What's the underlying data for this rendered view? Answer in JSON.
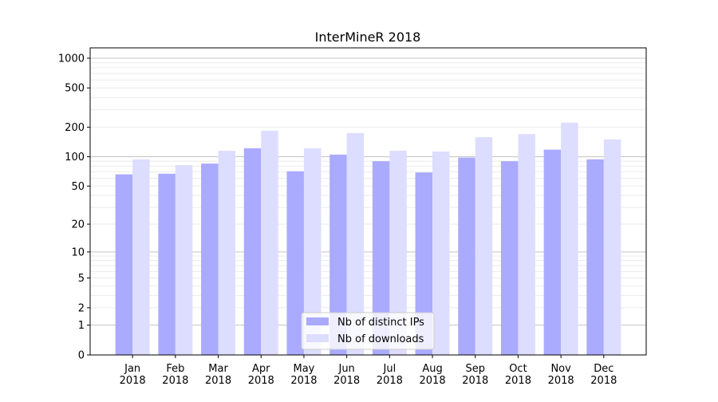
{
  "chart_data": {
    "type": "bar",
    "title": "InterMineR 2018",
    "xlabel": "",
    "ylabel": "",
    "yscale": "symlog (log10(1+y))",
    "ylim": [
      0,
      1200
    ],
    "yticks": [
      0,
      1,
      2,
      5,
      10,
      20,
      50,
      100,
      200,
      500,
      1000
    ],
    "ytick_labels": [
      "0",
      "1",
      "2",
      "5",
      "10",
      "20",
      "50",
      "100",
      "200",
      "500",
      "1000"
    ],
    "grid": true,
    "legend_placement": "lower center",
    "categories": [
      "Jan\n2018",
      "Feb\n2018",
      "Mar\n2018",
      "Apr\n2018",
      "May\n2018",
      "Jun\n2018",
      "Jul\n2018",
      "Aug\n2018",
      "Sep\n2018",
      "Oct\n2018",
      "Nov\n2018",
      "Dec\n2018"
    ],
    "series": [
      {
        "name": "Nb of distinct IPs",
        "color": "#aaaaff",
        "values": [
          66,
          67,
          85,
          122,
          71,
          105,
          90,
          69,
          98,
          90,
          118,
          94
        ]
      },
      {
        "name": "Nb of downloads",
        "color": "#ddddff",
        "values": [
          94,
          82,
          115,
          184,
          122,
          174,
          115,
          113,
          158,
          170,
          222,
          150
        ]
      }
    ]
  }
}
